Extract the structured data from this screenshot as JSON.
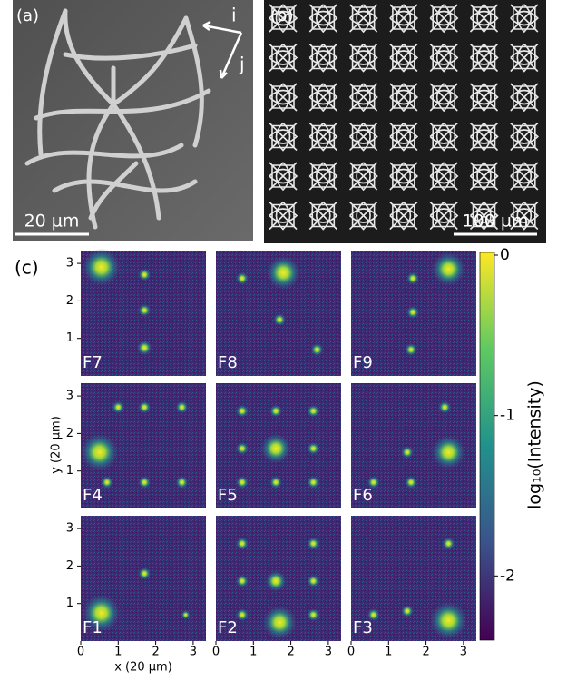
{
  "panels": {
    "a": {
      "label": "(a)",
      "scale_bar": "20 µm",
      "axes": [
        "i",
        "j"
      ]
    },
    "b": {
      "label": "(b)",
      "scale_bar": "100 µm"
    },
    "c": {
      "label": "(c)",
      "fields": [
        "F7",
        "F8",
        "F9",
        "F4",
        "F5",
        "F6",
        "F1",
        "F2",
        "F3"
      ],
      "x_axis": {
        "label": "x (20 µm)",
        "ticks": [
          0,
          1,
          2,
          3
        ]
      },
      "y_axis": {
        "label": "y (20 µm)",
        "ticks": [
          1,
          2,
          3
        ]
      },
      "colorbar": {
        "label": "log₁₀(Intensity)",
        "lim": [
          -2.4,
          0
        ],
        "ticks": [
          0,
          -1,
          -2
        ]
      }
    }
  }
}
